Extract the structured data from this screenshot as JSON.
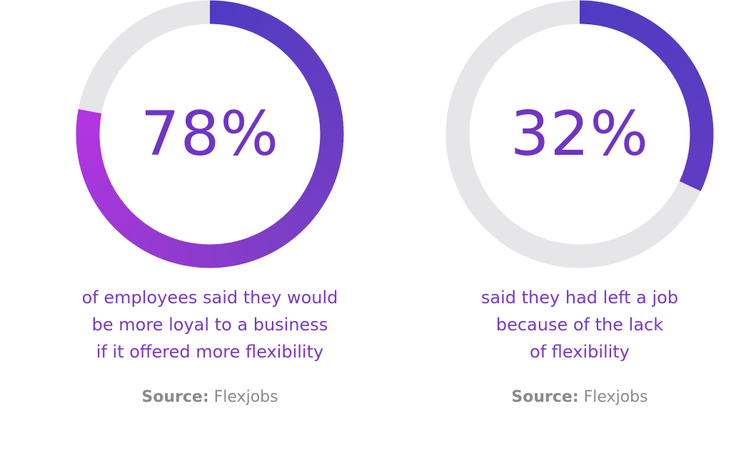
{
  "colors": {
    "track": "#e6e5e8",
    "arc_start": "#4f3bc2",
    "arc_mid": "#7a3ec4",
    "arc_end": "#b534e2",
    "text_purple": "#7034c6",
    "source_grey": "#8a8a8a"
  },
  "chart_data": [
    {
      "type": "pie",
      "value": 78,
      "value_label": "78%",
      "caption_lines": [
        "of employees said they would",
        "be more loyal to a business",
        "if it offered more flexibility"
      ],
      "source_label": "Source:",
      "source_name": "Flexjobs"
    },
    {
      "type": "pie",
      "value": 32,
      "value_label": "32%",
      "caption_lines": [
        "said they had left a job",
        "because of the lack",
        "of flexibility"
      ],
      "source_label": "Source:",
      "source_name": "Flexjobs"
    }
  ]
}
